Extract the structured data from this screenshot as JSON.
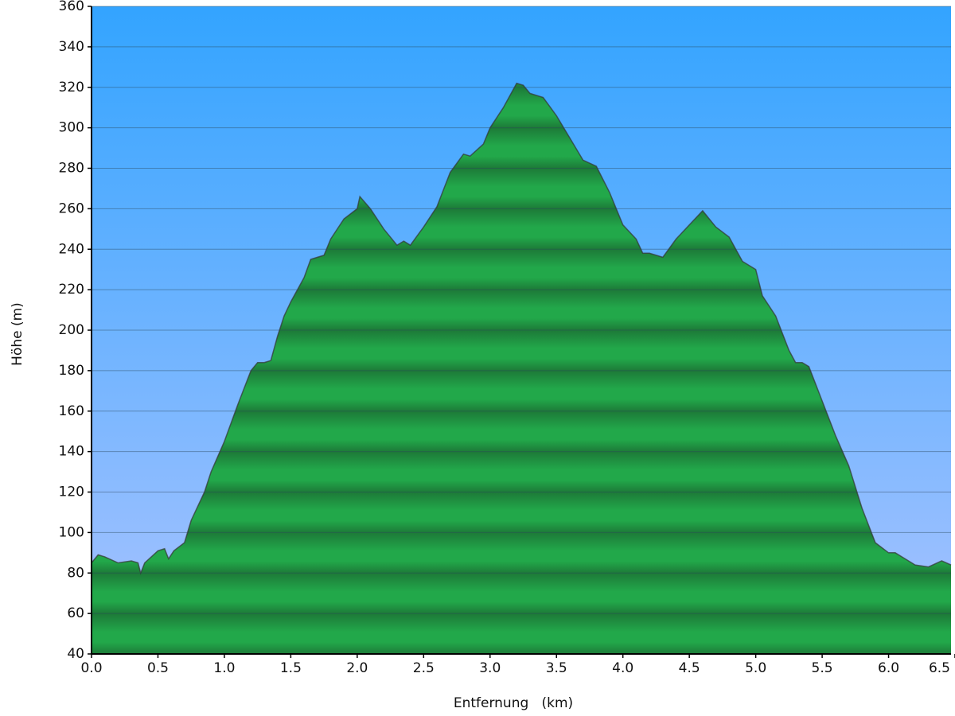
{
  "chart_data": {
    "type": "area",
    "x_label": "Entfernung   (km)",
    "y_label": "Höhe (m)",
    "x": [
      0.0,
      0.05,
      0.1,
      0.2,
      0.3,
      0.35,
      0.37,
      0.4,
      0.5,
      0.55,
      0.58,
      0.62,
      0.7,
      0.75,
      0.85,
      0.9,
      1.0,
      1.1,
      1.2,
      1.25,
      1.3,
      1.35,
      1.4,
      1.45,
      1.5,
      1.6,
      1.65,
      1.7,
      1.75,
      1.8,
      1.9,
      2.0,
      2.02,
      2.1,
      2.2,
      2.3,
      2.35,
      2.4,
      2.5,
      2.6,
      2.7,
      2.8,
      2.85,
      2.95,
      3.0,
      3.1,
      3.2,
      3.25,
      3.3,
      3.4,
      3.5,
      3.6,
      3.7,
      3.8,
      3.9,
      4.0,
      4.1,
      4.15,
      4.2,
      4.3,
      4.4,
      4.5,
      4.6,
      4.7,
      4.8,
      4.9,
      5.0,
      5.05,
      5.15,
      5.25,
      5.3,
      5.35,
      5.4,
      5.5,
      5.6,
      5.7,
      5.8,
      5.9,
      6.0,
      6.05,
      6.1,
      6.2,
      6.3,
      6.4,
      6.47
    ],
    "values": [
      85,
      89,
      88,
      85,
      86,
      85,
      80,
      85,
      91,
      92,
      87,
      91,
      95,
      106,
      120,
      130,
      145,
      163,
      180,
      184,
      184,
      185,
      197,
      207,
      214,
      226,
      235,
      236,
      237,
      245,
      255,
      260,
      266,
      260,
      250,
      242,
      244,
      242,
      251,
      261,
      278,
      287,
      286,
      292,
      300,
      310,
      322,
      321,
      317,
      315,
      306,
      295,
      284,
      281,
      268,
      252,
      245,
      238,
      238,
      236,
      245,
      252,
      259,
      251,
      246,
      234,
      230,
      217,
      207,
      190,
      184,
      184,
      182,
      165,
      148,
      133,
      112,
      95,
      90,
      90,
      88,
      84,
      83,
      86,
      84
    ],
    "color": "#22a84a",
    "xlim": [
      0,
      6.47
    ],
    "ylim": [
      40,
      360
    ],
    "xticks": [
      {
        "value": 0,
        "label": "0.0"
      },
      0.5,
      {
        "value": 1,
        "label": "1.0"
      },
      1.5,
      {
        "value": 2,
        "label": "2.0"
      },
      2.5,
      {
        "value": 3,
        "label": "3.0"
      },
      3.5,
      {
        "value": 4,
        "label": "4.0"
      },
      4.5,
      {
        "value": 5,
        "label": "5.0"
      },
      5.5,
      {
        "value": 6,
        "label": "6.0"
      },
      6.5
    ],
    "yticks": [
      40,
      60,
      80,
      100,
      120,
      140,
      160,
      180,
      200,
      220,
      240,
      260,
      280,
      300,
      320,
      340,
      360
    ],
    "grid": true
  }
}
